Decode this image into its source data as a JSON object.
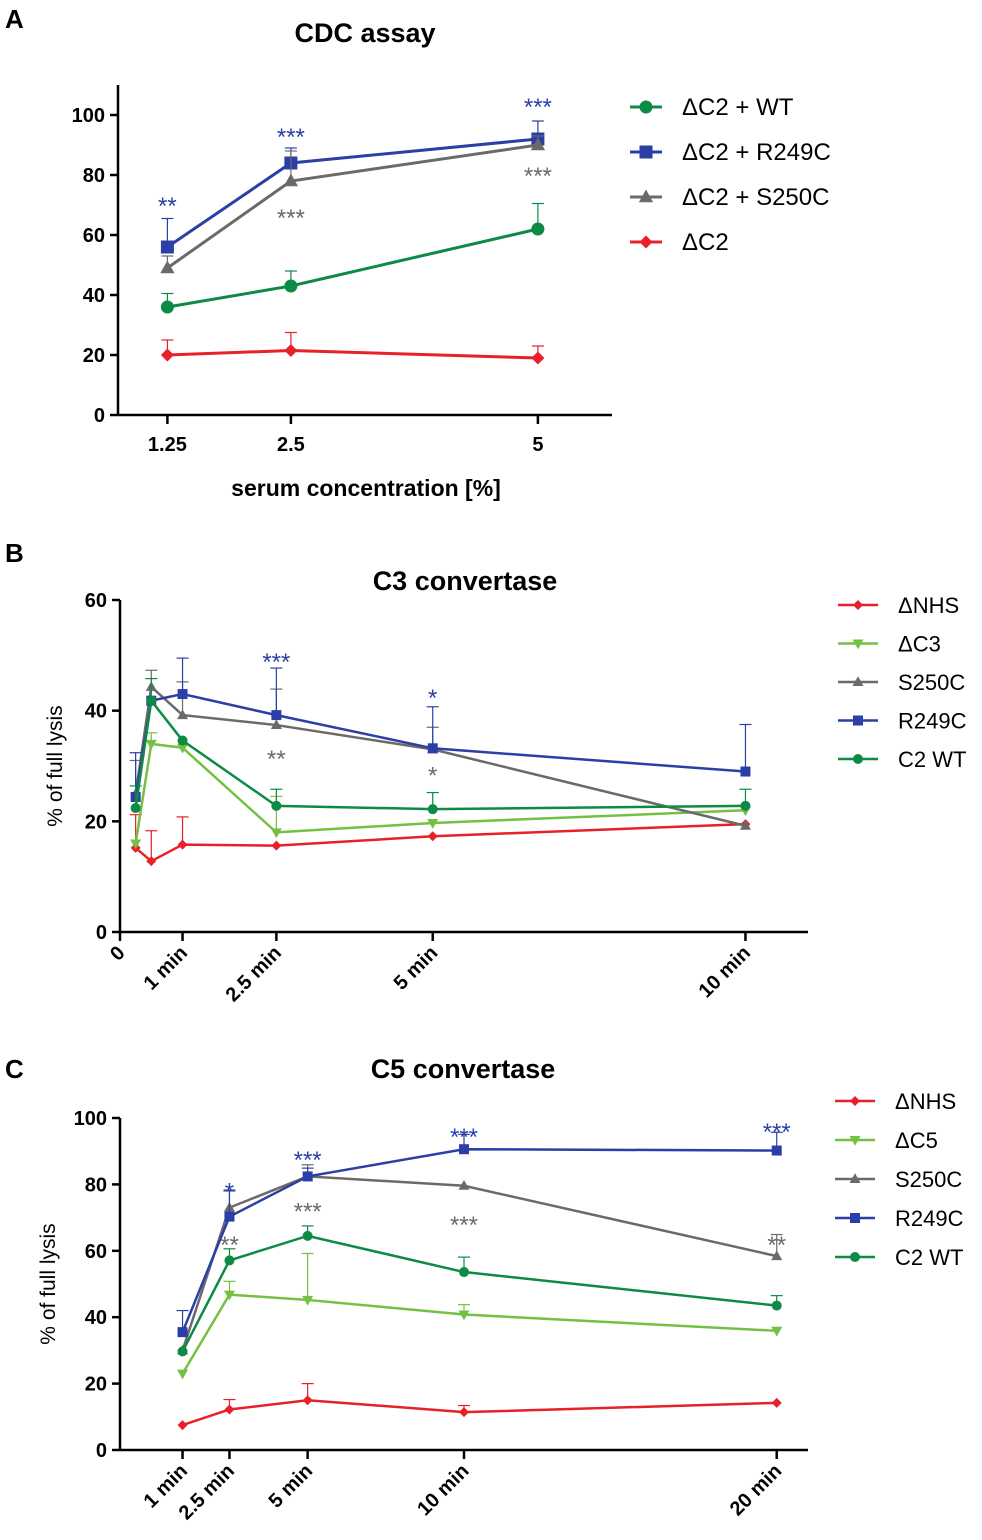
{
  "colors": {
    "red": "#e8202a",
    "green": "#0e8a47",
    "light_green": "#74c043",
    "gray": "#6a6a6a",
    "blue": "#2b3fa6"
  },
  "chart_data": [
    {
      "panel_label": "A",
      "type": "line",
      "title": "CDC assay",
      "xlabel": "serum concentration [%]",
      "ylabel": "",
      "xlim": [
        0.75,
        5.75
      ],
      "ylim": [
        0,
        110
      ],
      "categories": [
        "1.25",
        "2.5",
        "5"
      ],
      "x": [
        1.25,
        2.5,
        5
      ],
      "yticks": [
        0,
        20,
        40,
        60,
        80,
        100
      ],
      "series": [
        {
          "name": "ΔC2 + WT",
          "color": "#0e8a47",
          "marker": "circle",
          "values": [
            36,
            43,
            62
          ],
          "errors": [
            4.5,
            5,
            8.5
          ]
        },
        {
          "name": "ΔC2 + R249C",
          "color": "#2b3fa6",
          "marker": "square",
          "values": [
            56,
            84,
            92
          ],
          "errors": [
            9.5,
            5,
            6
          ]
        },
        {
          "name": "ΔC2 + S250C",
          "color": "#6a6a6a",
          "marker": "triangle-up",
          "values": [
            49,
            78,
            90
          ],
          "errors": [
            4,
            10,
            3
          ]
        },
        {
          "name": "ΔC2",
          "color": "#e8202a",
          "marker": "diamond",
          "values": [
            20,
            21.5,
            19
          ],
          "errors": [
            5,
            6,
            4
          ]
        }
      ],
      "annotations": [
        {
          "text": "**",
          "x": 1.25,
          "y": 71,
          "color": "#2b3fa6"
        },
        {
          "text": "***",
          "x": 2.5,
          "y": 94,
          "color": "#2b3fa6"
        },
        {
          "text": "***",
          "x": 2.5,
          "y": 67,
          "color": "#6a6a6a"
        },
        {
          "text": "***",
          "x": 5,
          "y": 104,
          "color": "#2b3fa6"
        },
        {
          "text": "***",
          "x": 5,
          "y": 81,
          "color": "#6a6a6a"
        }
      ]
    },
    {
      "panel_label": "B",
      "type": "line",
      "title": "C3 convertase",
      "xlabel": "",
      "ylabel": "% of full lysis",
      "xlim": [
        0,
        11
      ],
      "ylim": [
        0,
        60
      ],
      "categories": [
        "0",
        "1 min",
        "2.5 min",
        "5 min",
        "10 min"
      ],
      "xticks": [
        0,
        1,
        2.5,
        5,
        10
      ],
      "yticks": [
        0,
        20,
        40,
        60
      ],
      "x": [
        0.25,
        0.5,
        1,
        2.5,
        5,
        10
      ],
      "series": [
        {
          "name": "ΔNHS",
          "color": "#e8202a",
          "marker": "diamond",
          "values": [
            15.2,
            12.8,
            15.8,
            15.6,
            17.3,
            19.5
          ],
          "errors": [
            6,
            5.5,
            5,
            0,
            0,
            0
          ]
        },
        {
          "name": "ΔC3",
          "color": "#74c043",
          "marker": "triangle-down",
          "values": [
            16,
            34,
            33.3,
            18,
            19.7,
            22
          ],
          "errors": [
            0,
            2,
            0,
            6.5,
            0,
            0
          ]
        },
        {
          "name": "S250C",
          "color": "#6a6a6a",
          "marker": "triangle-up",
          "values": [
            25,
            44.3,
            39.2,
            37.4,
            33,
            19.2
          ],
          "errors": [
            6,
            3,
            6,
            6.5,
            4,
            0
          ]
        },
        {
          "name": "R249C",
          "color": "#2b3fa6",
          "marker": "square",
          "values": [
            24.4,
            41.8,
            43,
            39.2,
            33.2,
            29
          ],
          "errors": [
            8,
            0,
            6.5,
            8.5,
            7.5,
            8.5
          ]
        },
        {
          "name": "C2 WT",
          "color": "#0e8a47",
          "marker": "circle",
          "values": [
            22.4,
            41.8,
            34.6,
            22.8,
            22.2,
            22.8
          ],
          "errors": [
            4,
            4,
            0,
            3,
            3,
            3
          ]
        }
      ],
      "annotations": [
        {
          "text": "***",
          "x": 2.5,
          "y": 49.5,
          "color": "#2b3fa6"
        },
        {
          "text": "**",
          "x": 2.5,
          "y": 32,
          "color": "#6a6a6a"
        },
        {
          "text": "*",
          "x": 5,
          "y": 43,
          "color": "#2b3fa6"
        },
        {
          "text": "*",
          "x": 5,
          "y": 29,
          "color": "#6a6a6a"
        }
      ]
    },
    {
      "panel_label": "C",
      "type": "line",
      "title": "C5 convertase",
      "xlabel": "",
      "ylabel": "% of full lysis",
      "xlim": [
        -1,
        21
      ],
      "ylim": [
        0,
        100
      ],
      "categories": [
        "1 min",
        "2.5 min",
        "5 min",
        "10 min",
        "20 min"
      ],
      "xticks": [
        1,
        2.5,
        5,
        10,
        20
      ],
      "yticks": [
        0,
        20,
        40,
        60,
        80,
        100
      ],
      "x": [
        1,
        2.5,
        5,
        10,
        20
      ],
      "series": [
        {
          "name": "ΔNHS",
          "color": "#e8202a",
          "marker": "diamond",
          "values": [
            7.5,
            12.2,
            15,
            11.4,
            14.2
          ],
          "errors": [
            0,
            3,
            5,
            2,
            0
          ]
        },
        {
          "name": "ΔC5",
          "color": "#74c043",
          "marker": "triangle-down",
          "values": [
            23,
            46.8,
            45.2,
            40.8,
            35.9
          ],
          "errors": [
            0,
            4,
            14,
            3,
            0
          ]
        },
        {
          "name": "S250C",
          "color": "#6a6a6a",
          "marker": "triangle-up",
          "values": [
            30,
            73,
            82.4,
            79.6,
            58.4
          ],
          "errors": [
            0,
            5,
            3.5,
            0,
            6.5
          ]
        },
        {
          "name": "R249C",
          "color": "#2b3fa6",
          "marker": "square",
          "values": [
            35.5,
            70.3,
            82.4,
            90.6,
            90.2
          ],
          "errors": [
            6.5,
            8,
            2.5,
            4.5,
            5.5
          ]
        },
        {
          "name": "C2 WT",
          "color": "#0e8a47",
          "marker": "circle",
          "values": [
            29.7,
            57.1,
            64.5,
            53.6,
            43.5
          ],
          "errors": [
            0,
            3.5,
            3,
            4.5,
            3
          ]
        }
      ],
      "annotations": [
        {
          "text": "*",
          "x": 2.5,
          "y": 79,
          "color": "#2b3fa6"
        },
        {
          "text": "**",
          "x": 2.5,
          "y": 63,
          "color": "#6a6a6a"
        },
        {
          "text": "***",
          "x": 5,
          "y": 88.5,
          "color": "#2b3fa6"
        },
        {
          "text": "***",
          "x": 5,
          "y": 73,
          "color": "#6a6a6a"
        },
        {
          "text": "***",
          "x": 10,
          "y": 95.5,
          "color": "#2b3fa6"
        },
        {
          "text": "***",
          "x": 10,
          "y": 69,
          "color": "#6a6a6a"
        },
        {
          "text": "***",
          "x": 20,
          "y": 97,
          "color": "#2b3fa6"
        },
        {
          "text": "**",
          "x": 20,
          "y": 63,
          "color": "#6a6a6a"
        }
      ]
    }
  ]
}
